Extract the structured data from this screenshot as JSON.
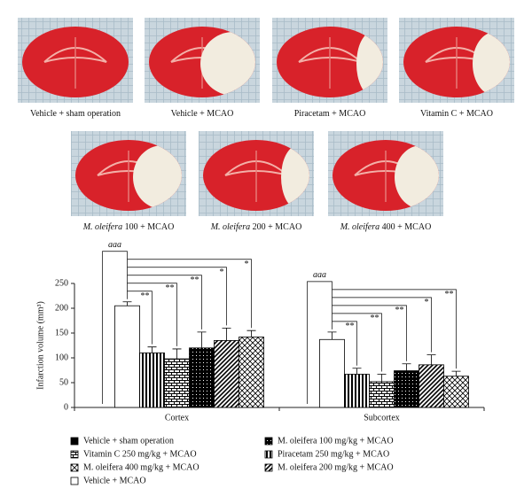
{
  "photos": [
    {
      "caption": [
        {
          "text": "Vehicle + sham operation"
        }
      ]
    },
    {
      "caption": [
        {
          "text": "Vehicle + MCAO"
        }
      ]
    },
    {
      "caption": [
        {
          "text": "Piracetam + MCAO"
        }
      ]
    },
    {
      "caption": [
        {
          "text": "Vitamin C + MCAO"
        }
      ]
    },
    {
      "caption": [
        {
          "text": "M. oleifera",
          "italic": true
        },
        {
          "text": " 100 + MCAO"
        }
      ]
    },
    {
      "caption": [
        {
          "text": "M. oleifera",
          "italic": true
        },
        {
          "text": " 200 + MCAO"
        }
      ]
    },
    {
      "caption": [
        {
          "text": "M. oleifera",
          "italic": true
        },
        {
          "text": " 400 + MCAO"
        }
      ]
    }
  ],
  "chart_data": {
    "type": "bar",
    "y_label": "Infarction volume (mm³)",
    "categories": [
      "Cortex",
      "Subcortex"
    ],
    "ylim": [
      0,
      250
    ],
    "yticks": [
      0,
      50,
      100,
      150,
      200,
      250
    ],
    "series": [
      {
        "name": "Vehicle + sham operation",
        "color": "#000000",
        "values": [
          0,
          0
        ]
      },
      {
        "name": "Vehicle + MCAO",
        "color": "#ffffff",
        "values": [
          205,
          137
        ],
        "errors": [
          8,
          15
        ],
        "significance": [
          "aaa",
          "aaa"
        ]
      },
      {
        "name": "Piracetam 250 mg/kg + MCAO",
        "pattern": "vertical",
        "values": [
          110,
          67
        ],
        "errors": [
          12,
          12
        ],
        "significance": [
          "**",
          "**"
        ]
      },
      {
        "name": "Vitamin C 250 mg/kg + MCAO",
        "pattern": "brick",
        "values": [
          98,
          52
        ],
        "errors": [
          20,
          15
        ],
        "significance": [
          "**",
          "**"
        ]
      },
      {
        "name": "M. oleifera 100 mg/kg + MCAO",
        "pattern": "dots",
        "values": [
          120,
          74
        ],
        "errors": [
          32,
          14
        ],
        "significance": [
          "**",
          "**"
        ]
      },
      {
        "name": "M. oleifera 200 mg/kg + MCAO",
        "pattern": "diagonal",
        "values": [
          135,
          86
        ],
        "errors": [
          25,
          20
        ],
        "significance": [
          "*",
          "*"
        ]
      },
      {
        "name": "M. oleifera 400 mg/kg + MCAO",
        "pattern": "cross",
        "values": [
          142,
          63
        ],
        "errors": [
          13,
          10
        ],
        "significance": [
          "*",
          "**"
        ]
      }
    ]
  }
}
